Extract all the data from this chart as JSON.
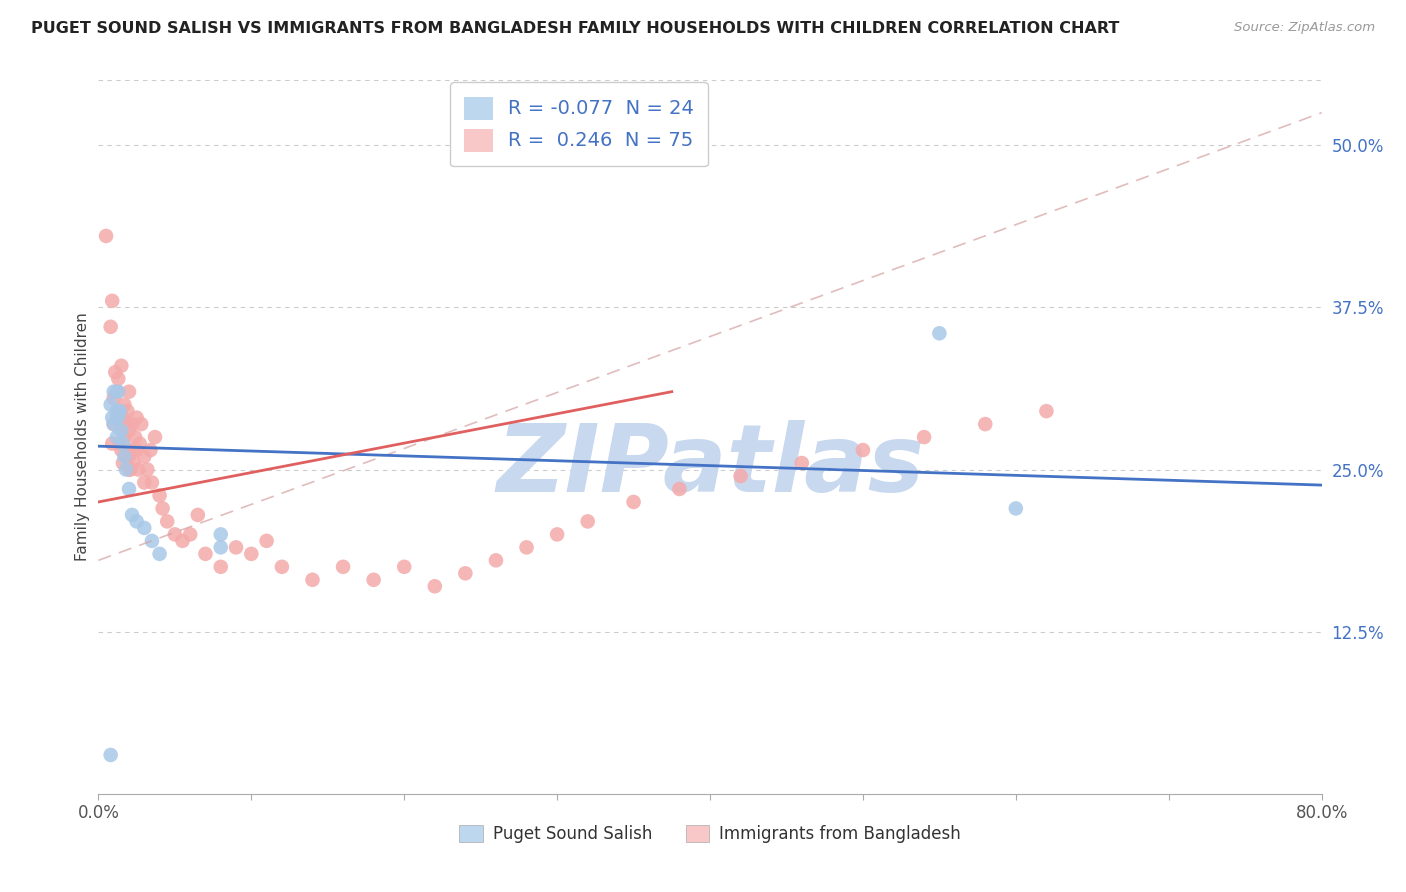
{
  "title": "PUGET SOUND SALISH VS IMMIGRANTS FROM BANGLADESH FAMILY HOUSEHOLDS WITH CHILDREN CORRELATION CHART",
  "source": "Source: ZipAtlas.com",
  "ylabel": "Family Households with Children",
  "xlim": [
    0.0,
    0.8
  ],
  "ylim": [
    0.0,
    0.55
  ],
  "xticks": [
    0.0,
    0.1,
    0.2,
    0.3,
    0.4,
    0.5,
    0.6,
    0.7,
    0.8
  ],
  "xlabel_ends": [
    "0.0%",
    "80.0%"
  ],
  "yticks_right": [
    0.125,
    0.25,
    0.375,
    0.5
  ],
  "yticklabels_right": [
    "12.5%",
    "25.0%",
    "37.5%",
    "50.0%"
  ],
  "legend_r_line1": [
    "R = ",
    "-0.077",
    "  N = ",
    "24"
  ],
  "legend_r_line2": [
    "R =  ",
    "0.246",
    "  N = ",
    "75"
  ],
  "legend_series": [
    "Puget Sound Salish",
    "Immigrants from Bangladesh"
  ],
  "blue_color": "#A8C8E8",
  "pink_color": "#F4AAAA",
  "blue_fill_color": "#BDD7EE",
  "pink_fill_color": "#F8C8C8",
  "blue_line_color": "#4472C4",
  "pink_line_color": "#E06060",
  "dash_line_color": "#D4A0A0",
  "watermark": "ZIPatlas",
  "watermark_color": "#C8D8EE",
  "blue_line_x": [
    0.0,
    0.8
  ],
  "blue_line_y": [
    0.268,
    0.238
  ],
  "pink_line_x": [
    0.0,
    0.375
  ],
  "pink_line_y": [
    0.225,
    0.31
  ],
  "dash_line_x": [
    0.0,
    0.8
  ],
  "dash_line_y": [
    0.18,
    0.525
  ],
  "blue_scatter_x": [
    0.008,
    0.008,
    0.009,
    0.01,
    0.01,
    0.012,
    0.012,
    0.013,
    0.013,
    0.014,
    0.015,
    0.016,
    0.017,
    0.018,
    0.02,
    0.022,
    0.025,
    0.03,
    0.035,
    0.04,
    0.08,
    0.55,
    0.6,
    0.08
  ],
  "blue_scatter_y": [
    0.03,
    0.3,
    0.29,
    0.285,
    0.31,
    0.275,
    0.295,
    0.29,
    0.31,
    0.295,
    0.28,
    0.27,
    0.26,
    0.25,
    0.235,
    0.215,
    0.21,
    0.205,
    0.195,
    0.185,
    0.2,
    0.355,
    0.22,
    0.19
  ],
  "pink_scatter_x": [
    0.005,
    0.008,
    0.009,
    0.009,
    0.01,
    0.01,
    0.011,
    0.012,
    0.012,
    0.013,
    0.013,
    0.014,
    0.014,
    0.015,
    0.015,
    0.015,
    0.016,
    0.016,
    0.017,
    0.017,
    0.018,
    0.018,
    0.019,
    0.019,
    0.02,
    0.02,
    0.02,
    0.021,
    0.022,
    0.022,
    0.023,
    0.024,
    0.025,
    0.025,
    0.026,
    0.027,
    0.028,
    0.03,
    0.03,
    0.032,
    0.034,
    0.035,
    0.037,
    0.04,
    0.042,
    0.045,
    0.05,
    0.055,
    0.06,
    0.065,
    0.07,
    0.08,
    0.09,
    0.1,
    0.11,
    0.12,
    0.14,
    0.16,
    0.18,
    0.2,
    0.22,
    0.24,
    0.26,
    0.28,
    0.3,
    0.32,
    0.35,
    0.38,
    0.42,
    0.46,
    0.5,
    0.54,
    0.58,
    0.62,
    0.02
  ],
  "pink_scatter_y": [
    0.43,
    0.36,
    0.38,
    0.27,
    0.285,
    0.305,
    0.325,
    0.29,
    0.31,
    0.295,
    0.32,
    0.27,
    0.295,
    0.265,
    0.285,
    0.33,
    0.255,
    0.29,
    0.275,
    0.3,
    0.26,
    0.285,
    0.295,
    0.265,
    0.26,
    0.28,
    0.31,
    0.25,
    0.265,
    0.285,
    0.255,
    0.275,
    0.265,
    0.29,
    0.25,
    0.27,
    0.285,
    0.24,
    0.26,
    0.25,
    0.265,
    0.24,
    0.275,
    0.23,
    0.22,
    0.21,
    0.2,
    0.195,
    0.2,
    0.215,
    0.185,
    0.175,
    0.19,
    0.185,
    0.195,
    0.175,
    0.165,
    0.175,
    0.165,
    0.175,
    0.16,
    0.17,
    0.18,
    0.19,
    0.2,
    0.21,
    0.225,
    0.235,
    0.245,
    0.255,
    0.265,
    0.275,
    0.285,
    0.295,
    0.25
  ]
}
